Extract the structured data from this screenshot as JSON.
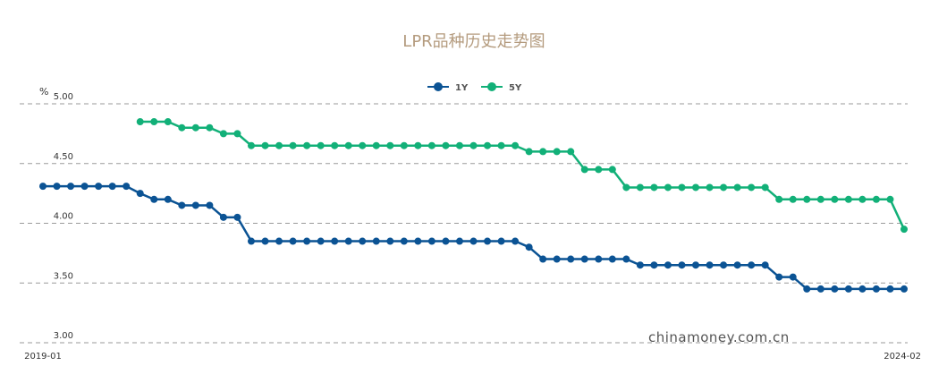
{
  "chart_data": {
    "type": "line",
    "title": "LPR品种历史走势图",
    "ylabel": "%",
    "ylim": [
      3.0,
      5.0
    ],
    "y_ticks": [
      "5.00",
      "4.50",
      "4.00",
      "3.50",
      "3.00"
    ],
    "x_tick_labels": [
      "2019-01",
      "2024-02"
    ],
    "grid": true,
    "legend_position": "top-center",
    "watermark": "chinamoney.com.cn",
    "series": [
      {
        "name": "1Y",
        "color": "#0b5394",
        "start_index": 0,
        "values": [
          4.31,
          4.31,
          4.31,
          4.31,
          4.31,
          4.31,
          4.31,
          4.25,
          4.2,
          4.2,
          4.15,
          4.15,
          4.15,
          4.05,
          4.05,
          3.85,
          3.85,
          3.85,
          3.85,
          3.85,
          3.85,
          3.85,
          3.85,
          3.85,
          3.85,
          3.85,
          3.85,
          3.85,
          3.85,
          3.85,
          3.85,
          3.85,
          3.85,
          3.85,
          3.85,
          3.8,
          3.7,
          3.7,
          3.7,
          3.7,
          3.7,
          3.7,
          3.7,
          3.65,
          3.65,
          3.65,
          3.65,
          3.65,
          3.65,
          3.65,
          3.65,
          3.65,
          3.65,
          3.55,
          3.55,
          3.45,
          3.45,
          3.45,
          3.45,
          3.45,
          3.45,
          3.45,
          3.45
        ]
      },
      {
        "name": "5Y",
        "color": "#12b078",
        "start_index": 7,
        "values": [
          4.85,
          4.85,
          4.85,
          4.8,
          4.8,
          4.8,
          4.75,
          4.75,
          4.65,
          4.65,
          4.65,
          4.65,
          4.65,
          4.65,
          4.65,
          4.65,
          4.65,
          4.65,
          4.65,
          4.65,
          4.65,
          4.65,
          4.65,
          4.65,
          4.65,
          4.65,
          4.65,
          4.65,
          4.6,
          4.6,
          4.6,
          4.6,
          4.45,
          4.45,
          4.45,
          4.3,
          4.3,
          4.3,
          4.3,
          4.3,
          4.3,
          4.3,
          4.3,
          4.3,
          4.3,
          4.3,
          4.2,
          4.2,
          4.2,
          4.2,
          4.2,
          4.2,
          4.2,
          4.2,
          4.2,
          3.95
        ]
      }
    ]
  }
}
